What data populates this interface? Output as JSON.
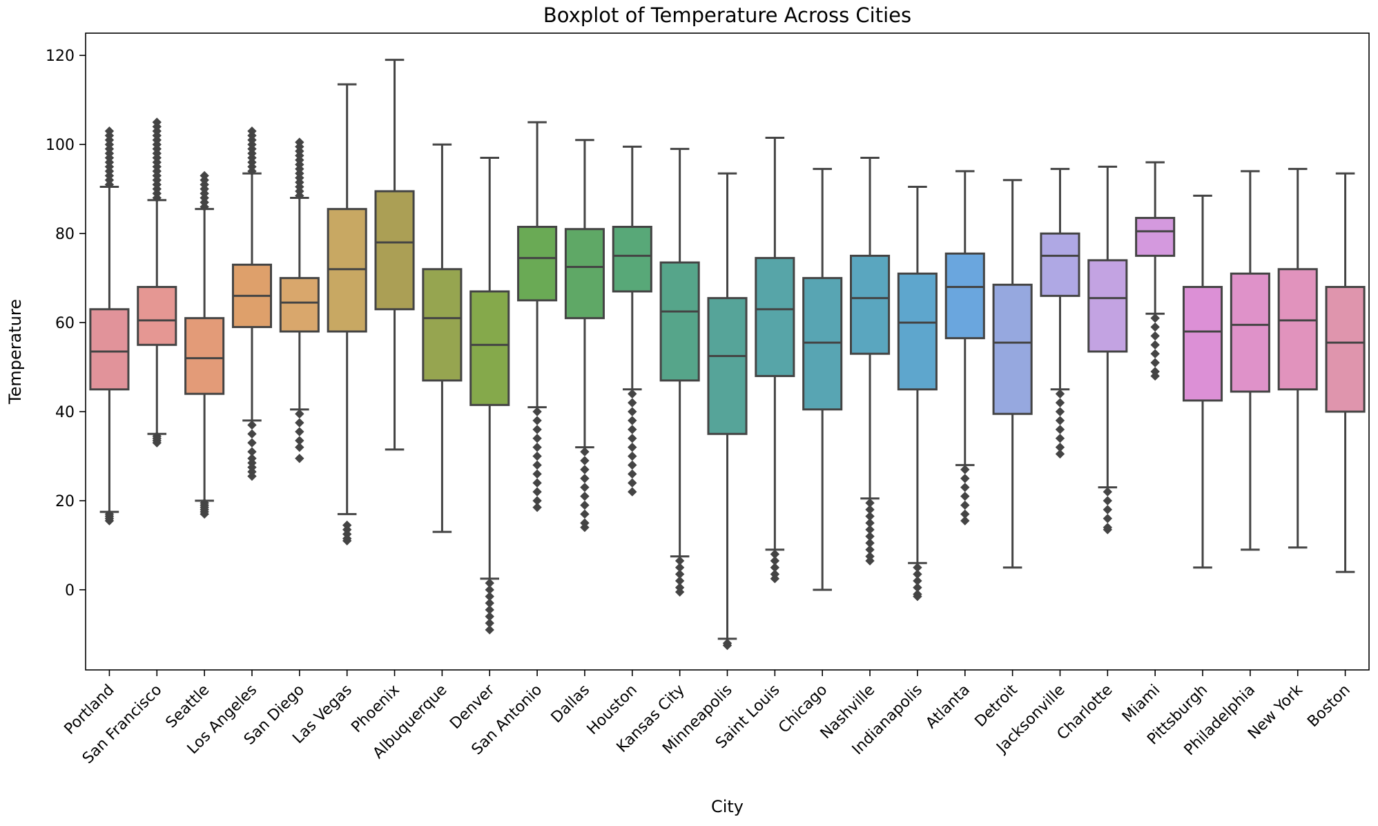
{
  "chart_data": {
    "type": "box",
    "title": "Boxplot of Temperature Across Cities",
    "xlabel": "City",
    "ylabel": "Temperature",
    "ylim": [
      -18,
      125
    ],
    "yticks": [
      0,
      20,
      40,
      60,
      80,
      100,
      120
    ],
    "legend": "none",
    "grid": false,
    "median_color": "#444444",
    "series": [
      {
        "category": "Portland",
        "color": "#e1939a",
        "whisker_low": 17.5,
        "q1": 45,
        "median": 53.5,
        "q3": 63,
        "whisker_high": 90.5,
        "outliers_low": [
          17,
          16.5,
          16,
          15.5
        ],
        "outliers_high": [
          91,
          92,
          93,
          94,
          95,
          96,
          97,
          98,
          99,
          100,
          101,
          102,
          103
        ]
      },
      {
        "category": "San Francisco",
        "color": "#e59793",
        "whisker_low": 35,
        "q1": 55,
        "median": 60.5,
        "q3": 68,
        "whisker_high": 87.5,
        "outliers_low": [
          34.5,
          34,
          33.5,
          33
        ],
        "outliers_high": [
          88,
          89,
          90,
          91,
          92,
          93,
          94,
          95,
          96,
          97,
          98,
          99,
          100,
          101,
          102,
          103,
          104,
          105
        ]
      },
      {
        "category": "Seattle",
        "color": "#e39b78",
        "whisker_low": 20,
        "q1": 44,
        "median": 52,
        "q3": 61,
        "whisker_high": 85.5,
        "outliers_low": [
          19.5,
          19,
          18.5,
          18,
          17.5,
          17
        ],
        "outliers_high": [
          86,
          87,
          88,
          89,
          90,
          91,
          92,
          93
        ]
      },
      {
        "category": "Los Angeles",
        "color": "#dea06b",
        "whisker_low": 38,
        "q1": 59,
        "median": 66,
        "q3": 73,
        "whisker_high": 93.5,
        "outliers_low": [
          37,
          35,
          33,
          31,
          29.5,
          28.5,
          27.5,
          26.5,
          25.5
        ],
        "outliers_high": [
          94,
          95,
          96,
          97,
          98,
          99,
          100,
          101,
          102,
          103
        ]
      },
      {
        "category": "San Diego",
        "color": "#d9a76c",
        "whisker_low": 40.5,
        "q1": 58,
        "median": 64.5,
        "q3": 70,
        "whisker_high": 88,
        "outliers_low": [
          39.5,
          37.5,
          35.5,
          33.5,
          32,
          29.5
        ],
        "outliers_high": [
          88.5,
          89.5,
          90.5,
          91.5,
          92.5,
          93.5,
          94.5,
          95.5,
          96.5,
          97.5,
          98.5,
          99.5,
          100.5
        ]
      },
      {
        "category": "Las Vegas",
        "color": "#c8a863",
        "whisker_low": 17,
        "q1": 58,
        "median": 72,
        "q3": 85.5,
        "whisker_high": 113.5,
        "outliers_low": [
          14.5,
          13.5,
          12.5,
          11.5,
          11
        ],
        "outliers_high": []
      },
      {
        "category": "Phoenix",
        "color": "#ab9f55",
        "whisker_low": 31.5,
        "q1": 63,
        "median": 78,
        "q3": 89.5,
        "whisker_high": 119,
        "outliers_low": [],
        "outliers_high": []
      },
      {
        "category": "Albuquerque",
        "color": "#96a550",
        "whisker_low": 13,
        "q1": 47,
        "median": 61,
        "q3": 72,
        "whisker_high": 100,
        "outliers_low": [],
        "outliers_high": []
      },
      {
        "category": "Denver",
        "color": "#85a94b",
        "whisker_low": 2.5,
        "q1": 41.5,
        "median": 55,
        "q3": 67,
        "whisker_high": 97,
        "outliers_low": [
          1.5,
          0,
          -1.5,
          -3,
          -4.5,
          -6,
          -7.5,
          -9
        ],
        "outliers_high": []
      },
      {
        "category": "San Antonio",
        "color": "#6aaa55",
        "whisker_low": 41,
        "q1": 65,
        "median": 74.5,
        "q3": 81.5,
        "whisker_high": 105,
        "outliers_low": [
          40,
          38,
          36,
          34,
          32,
          30,
          28,
          26,
          24,
          22,
          20,
          18.5
        ],
        "outliers_high": []
      },
      {
        "category": "Dallas",
        "color": "#5fa866",
        "whisker_low": 32,
        "q1": 61,
        "median": 72.5,
        "q3": 81,
        "whisker_high": 101,
        "outliers_low": [
          31,
          29,
          27,
          25,
          23,
          21,
          19,
          17,
          15,
          14
        ],
        "outliers_high": []
      },
      {
        "category": "Houston",
        "color": "#58a878",
        "whisker_low": 45,
        "q1": 67,
        "median": 75,
        "q3": 81.5,
        "whisker_high": 99.5,
        "outliers_low": [
          44,
          42,
          40,
          38,
          36,
          34,
          32,
          30,
          28,
          26,
          24,
          22
        ],
        "outliers_high": []
      },
      {
        "category": "Kansas City",
        "color": "#56a58a",
        "whisker_low": 7.5,
        "q1": 47,
        "median": 62.5,
        "q3": 73.5,
        "whisker_high": 99,
        "outliers_low": [
          6.5,
          5,
          3.5,
          2,
          0.5,
          -0.5
        ],
        "outliers_high": []
      },
      {
        "category": "Minneapolis",
        "color": "#56a499",
        "whisker_low": -11,
        "q1": 35,
        "median": 52.5,
        "q3": 65.5,
        "whisker_high": 93.5,
        "outliers_low": [
          -12,
          -12.5
        ],
        "outliers_high": []
      },
      {
        "category": "Saint Louis",
        "color": "#57a5a8",
        "whisker_low": 9,
        "q1": 48,
        "median": 63,
        "q3": 74.5,
        "whisker_high": 101.5,
        "outliers_low": [
          8,
          6.5,
          5,
          3.5,
          2.5
        ],
        "outliers_high": []
      },
      {
        "category": "Chicago",
        "color": "#58a5b3",
        "whisker_low": 0,
        "q1": 40.5,
        "median": 55.5,
        "q3": 70,
        "whisker_high": 94.5,
        "outliers_low": [],
        "outliers_high": []
      },
      {
        "category": "Nashville",
        "color": "#5aa6bf",
        "whisker_low": 20.5,
        "q1": 53,
        "median": 65.5,
        "q3": 75,
        "whisker_high": 97,
        "outliers_low": [
          19.5,
          18,
          16.5,
          15,
          13.5,
          12,
          10.5,
          9,
          7.5,
          6.5
        ],
        "outliers_high": []
      },
      {
        "category": "Indianapolis",
        "color": "#5ea6cd",
        "whisker_low": 6,
        "q1": 45,
        "median": 60,
        "q3": 71,
        "whisker_high": 90.5,
        "outliers_low": [
          5,
          3.5,
          2,
          0.5,
          -1,
          -1.5
        ],
        "outliers_high": []
      },
      {
        "category": "Atlanta",
        "color": "#6aa6de",
        "whisker_low": 28,
        "q1": 56.5,
        "median": 68,
        "q3": 75.5,
        "whisker_high": 94,
        "outliers_low": [
          27,
          25,
          23,
          21,
          19,
          17,
          15.5
        ],
        "outliers_high": []
      },
      {
        "category": "Detroit",
        "color": "#96a8df",
        "whisker_low": 5,
        "q1": 39.5,
        "median": 55.5,
        "q3": 68.5,
        "whisker_high": 92,
        "outliers_low": [],
        "outliers_high": []
      },
      {
        "category": "Jacksonville",
        "color": "#afa8e4",
        "whisker_low": 45,
        "q1": 66,
        "median": 75,
        "q3": 80,
        "whisker_high": 94.5,
        "outliers_low": [
          44,
          42,
          40,
          38,
          36,
          34,
          32,
          30.5
        ],
        "outliers_high": []
      },
      {
        "category": "Charlotte",
        "color": "#c3a3e2",
        "whisker_low": 23,
        "q1": 53.5,
        "median": 65.5,
        "q3": 74,
        "whisker_high": 95,
        "outliers_low": [
          22,
          20,
          18,
          16,
          14,
          13.5
        ],
        "outliers_high": []
      },
      {
        "category": "Miami",
        "color": "#d499de",
        "whisker_low": 62,
        "q1": 75,
        "median": 80.5,
        "q3": 83.5,
        "whisker_high": 96,
        "outliers_low": [
          61,
          59,
          57,
          55,
          53,
          51,
          49,
          48
        ],
        "outliers_high": []
      },
      {
        "category": "Pittsburgh",
        "color": "#dc90d6",
        "whisker_low": 5,
        "q1": 42.5,
        "median": 58,
        "q3": 68,
        "whisker_high": 88.5,
        "outliers_low": [],
        "outliers_high": []
      },
      {
        "category": "Philadelphia",
        "color": "#df92c9",
        "whisker_low": 9,
        "q1": 44.5,
        "median": 59.5,
        "q3": 71,
        "whisker_high": 94,
        "outliers_low": [],
        "outliers_high": []
      },
      {
        "category": "New York",
        "color": "#e193bd",
        "whisker_low": 9.5,
        "q1": 45,
        "median": 60.5,
        "q3": 72,
        "whisker_high": 94.5,
        "outliers_low": [],
        "outliers_high": []
      },
      {
        "category": "Boston",
        "color": "#df95ad",
        "whisker_low": 4,
        "q1": 40,
        "median": 55.5,
        "q3": 68,
        "whisker_high": 93.5,
        "outliers_low": [],
        "outliers_high": []
      }
    ]
  }
}
